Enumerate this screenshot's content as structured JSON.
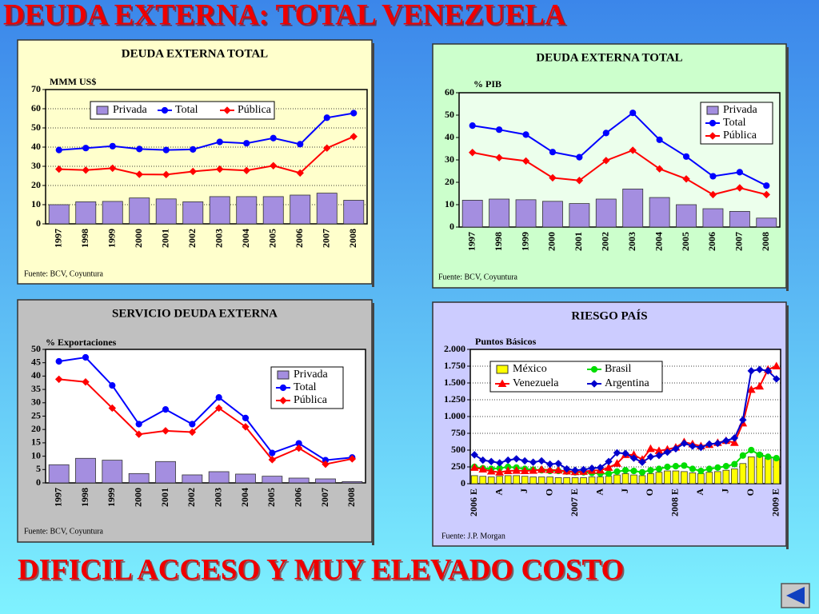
{
  "title": "DEUDA EXTERNA: TOTAL VENEZUELA",
  "footer": "DIFICIL ACCESO Y MUY ELEVADO COSTO",
  "chart_data": [
    {
      "type": "combo",
      "title": "DEUDA EXTERNA TOTAL",
      "ylabel": "MMM US$",
      "source": "Fuente: BCV, Coyuntura",
      "background": "#ffffcc",
      "plot_background": "#ffffcc",
      "legend": "top",
      "grid": true,
      "categories": [
        "1997",
        "1998",
        "1999",
        "2000",
        "2001",
        "2002",
        "2003",
        "2004",
        "2005",
        "2006",
        "2007",
        "2008"
      ],
      "ylim": [
        0,
        70
      ],
      "yticks": [
        0,
        10,
        20,
        30,
        40,
        50,
        60,
        70
      ],
      "series": [
        {
          "name": "Privada",
          "kind": "bar",
          "color": "#a48ee0",
          "values": [
            10,
            11.5,
            11.7,
            13.5,
            13,
            11.5,
            14.2,
            14.2,
            14.2,
            15,
            16,
            12.3
          ]
        },
        {
          "name": "Total",
          "kind": "line",
          "marker": "circle",
          "color": "#0000ff",
          "values": [
            38.5,
            39.5,
            40.5,
            39,
            38.5,
            38.8,
            42.7,
            42,
            44.7,
            41.5,
            55.3,
            57.7
          ]
        },
        {
          "name": "Pública",
          "kind": "line",
          "marker": "diamond",
          "color": "#ff0000",
          "values": [
            28.5,
            28,
            29,
            25.8,
            25.7,
            27.3,
            28.5,
            27.8,
            30.3,
            26.5,
            39.5,
            45.5
          ]
        }
      ]
    },
    {
      "type": "combo",
      "title": "DEUDA EXTERNA TOTAL",
      "ylabel": "% PIB",
      "source": "Fuente: BCV, Coyuntura",
      "background": "#ccffcc",
      "plot_background": "#ecffec",
      "legend": "top-right",
      "grid": false,
      "categories": [
        "1997",
        "1998",
        "1999",
        "2000",
        "2001",
        "2002",
        "2003",
        "2004",
        "2005",
        "2006",
        "2007",
        "2008"
      ],
      "ylim": [
        0,
        60
      ],
      "yticks": [
        0,
        10,
        20,
        30,
        40,
        50,
        60
      ],
      "series": [
        {
          "name": "Privada",
          "kind": "bar",
          "color": "#a48ee0",
          "values": [
            12,
            12.5,
            12.2,
            11.5,
            10.5,
            12.5,
            17,
            13.2,
            10,
            8.2,
            7,
            4
          ]
        },
        {
          "name": "Total",
          "kind": "line",
          "marker": "circle",
          "color": "#0000ff",
          "values": [
            45.3,
            43.5,
            41.3,
            33.5,
            31.2,
            42,
            51,
            39,
            31.5,
            22.7,
            24.5,
            18.5
          ]
        },
        {
          "name": "Pública",
          "kind": "line",
          "marker": "diamond",
          "color": "#ff0000",
          "values": [
            33.3,
            31,
            29.5,
            22,
            20.8,
            29.7,
            34.3,
            26,
            21.5,
            14.5,
            17.5,
            14.5
          ]
        }
      ]
    },
    {
      "type": "combo",
      "title": "SERVICIO DEUDA EXTERNA",
      "ylabel": "% Exportaciones",
      "source": "Fuente: BCV, Coyuntura",
      "background": "#c0c0c0",
      "plot_background": "#ffffff",
      "legend": "right",
      "grid": false,
      "categories": [
        "1997",
        "1998",
        "1999",
        "2000",
        "2001",
        "2002",
        "2003",
        "2004",
        "2005",
        "2006",
        "2007",
        "2008"
      ],
      "ylim": [
        0,
        50
      ],
      "yticks": [
        0,
        5,
        10,
        15,
        20,
        25,
        30,
        35,
        40,
        45,
        50
      ],
      "series": [
        {
          "name": "Privada",
          "kind": "bar",
          "color": "#a48ee0",
          "values": [
            6.8,
            9.2,
            8.5,
            3.5,
            8,
            3,
            4.2,
            3.3,
            2.5,
            1.8,
            1.5,
            0.5
          ]
        },
        {
          "name": "Total",
          "kind": "line",
          "marker": "circle",
          "color": "#0000ff",
          "values": [
            45.5,
            47,
            36.5,
            22,
            27.5,
            22,
            32,
            24.3,
            11.2,
            14.8,
            8.5,
            9.5
          ]
        },
        {
          "name": "Pública",
          "kind": "line",
          "marker": "diamond",
          "color": "#ff0000",
          "values": [
            38.8,
            37.8,
            28,
            18.2,
            19.5,
            19,
            28,
            21,
            8.7,
            13,
            7,
            9
          ]
        }
      ]
    },
    {
      "type": "combo",
      "title": "RIESGO PAÍS",
      "ylabel": "Puntos Básicos",
      "source": "Fuente: J.P. Morgan",
      "background": "#ccccff",
      "plot_background": "#ffffff",
      "legend": "top-left",
      "grid": true,
      "categories": [
        "2006 E",
        null,
        null,
        "A",
        null,
        null,
        "J",
        null,
        null,
        "O",
        null,
        null,
        "2007 E",
        null,
        null,
        "A",
        null,
        null,
        "J",
        null,
        null,
        "O",
        null,
        null,
        "2008 E",
        null,
        null,
        "A",
        null,
        null,
        "J",
        null,
        null,
        "O",
        null,
        null,
        "2009 E"
      ],
      "ylim": [
        0,
        2000
      ],
      "yticks": [
        0,
        250,
        500,
        750,
        {
          "value": 1000,
          "label": "1.000"
        },
        {
          "value": 1250,
          "label": "1.250"
        },
        {
          "value": 1500,
          "label": "1.500"
        },
        {
          "value": 1750,
          "label": "1.750"
        },
        {
          "value": 2000,
          "label": "2.000"
        }
      ],
      "series": [
        {
          "name": "México",
          "kind": "bar",
          "color": "#ffff00",
          "values": [
            120,
            110,
            100,
            110,
            120,
            120,
            110,
            100,
            100,
            100,
            90,
            90,
            90,
            90,
            100,
            100,
            110,
            130,
            150,
            130,
            120,
            150,
            170,
            190,
            190,
            180,
            160,
            150,
            170,
            180,
            200,
            220,
            300,
            400,
            450,
            380,
            370
          ]
        },
        {
          "name": "Brasil",
          "kind": "line",
          "marker": "circle",
          "color": "#00dd00",
          "values": [
            250,
            230,
            220,
            230,
            250,
            240,
            220,
            210,
            200,
            190,
            190,
            180,
            170,
            170,
            160,
            150,
            150,
            180,
            200,
            190,
            170,
            200,
            220,
            250,
            260,
            270,
            220,
            190,
            220,
            240,
            260,
            290,
            420,
            500,
            430,
            400,
            380
          ]
        },
        {
          "name": "Venezuela",
          "kind": "line",
          "marker": "triangle",
          "color": "#ff0000",
          "values": [
            240,
            215,
            185,
            170,
            190,
            195,
            190,
            195,
            210,
            205,
            200,
            185,
            175,
            180,
            195,
            200,
            240,
            300,
            430,
            430,
            360,
            520,
            490,
            510,
            540,
            620,
            590,
            560,
            580,
            610,
            640,
            610,
            900,
            1400,
            1450,
            1700,
            1750
          ]
        },
        {
          "name": "Argentina",
          "kind": "line",
          "marker": "diamond",
          "color": "#0000cc",
          "values": [
            430,
            350,
            330,
            310,
            350,
            370,
            340,
            320,
            340,
            290,
            300,
            220,
            200,
            210,
            230,
            240,
            330,
            460,
            450,
            380,
            320,
            400,
            420,
            470,
            520,
            600,
            560,
            540,
            590,
            600,
            640,
            680,
            950,
            1680,
            1700,
            1680,
            1560
          ]
        }
      ]
    }
  ]
}
